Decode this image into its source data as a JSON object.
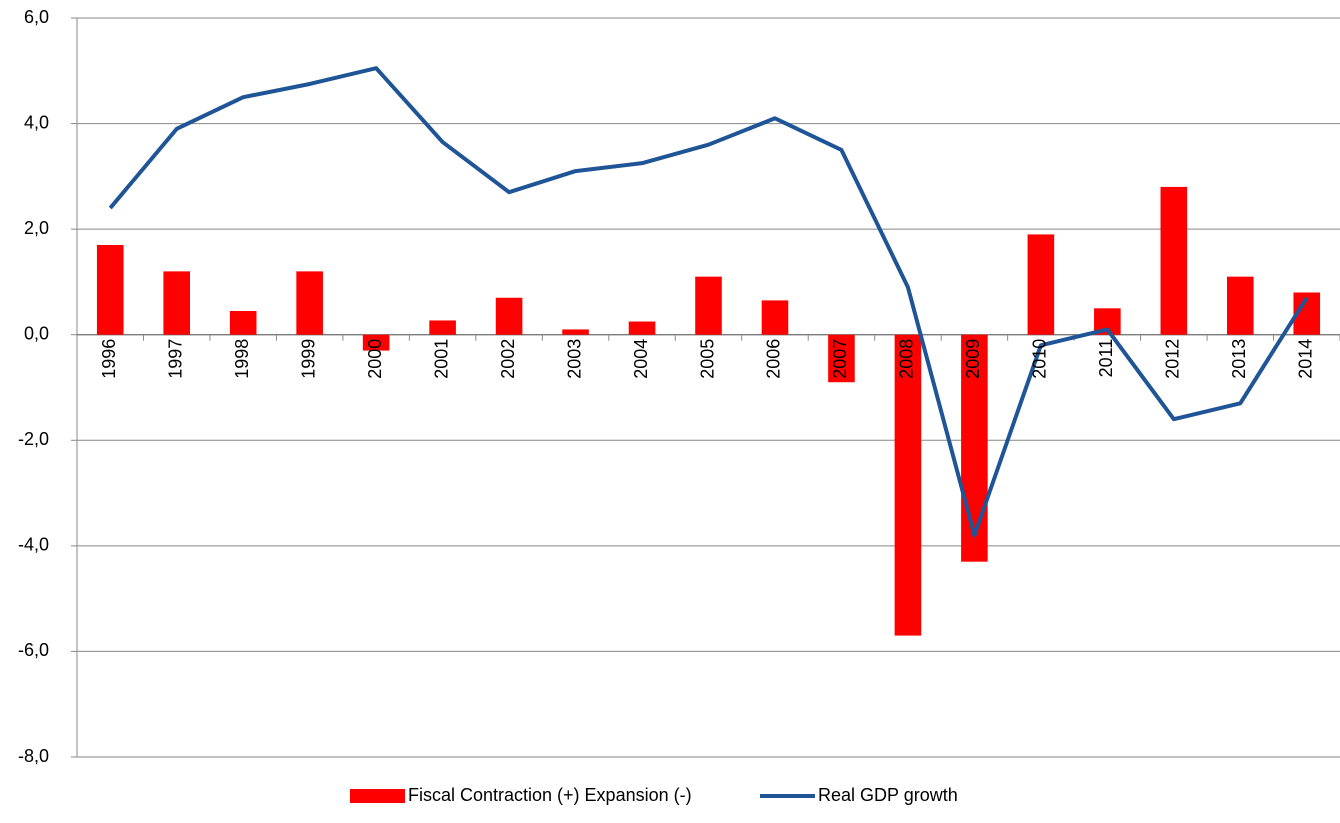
{
  "chart_data": {
    "type": "bar_line",
    "categories": [
      "1996",
      "1997",
      "1998",
      "1999",
      "2000",
      "2001",
      "2002",
      "2003",
      "2004",
      "2005",
      "2006",
      "2007",
      "2008",
      "2009",
      "2010",
      "2011",
      "2012",
      "2013",
      "2014"
    ],
    "series": [
      {
        "name": "Fiscal Contraction (+) Expansion (-)",
        "type": "bar",
        "color": "#ff0000",
        "values": [
          1.7,
          1.2,
          0.45,
          1.2,
          -0.3,
          0.27,
          0.7,
          0.1,
          0.25,
          1.1,
          0.65,
          -0.9,
          -5.7,
          -4.3,
          1.9,
          0.5,
          2.8,
          1.1,
          0.8
        ]
      },
      {
        "name": "Real GDP growth",
        "type": "line",
        "color": "#1f5596",
        "values": [
          2.4,
          3.9,
          4.5,
          4.75,
          5.05,
          3.65,
          2.7,
          3.1,
          3.25,
          3.6,
          4.1,
          3.5,
          0.9,
          -3.8,
          -0.2,
          0.1,
          -1.6,
          -1.3,
          0.7
        ]
      }
    ],
    "ylim": [
      -8,
      6
    ],
    "yticks": [
      {
        "value": -8,
        "label": "-8,0"
      },
      {
        "value": -6,
        "label": "-6,0"
      },
      {
        "value": -4,
        "label": "-4,0"
      },
      {
        "value": -2,
        "label": "-2,0"
      },
      {
        "value": 0,
        "label": "0,0"
      },
      {
        "value": 2,
        "label": "2,0"
      },
      {
        "value": 4,
        "label": "4,0"
      },
      {
        "value": 6,
        "label": "6,0"
      }
    ],
    "grid": true,
    "legend": "bottom"
  }
}
